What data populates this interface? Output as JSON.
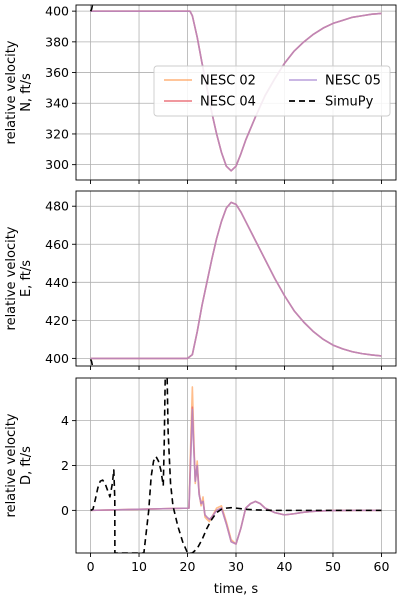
{
  "chart_data": [
    {
      "type": "line",
      "ylabel_line1": "relative velocity",
      "ylabel_line2": "N, ft/s",
      "xlim": [
        -3,
        63
      ],
      "ylim": [
        290,
        404
      ],
      "yticks": [
        300,
        320,
        340,
        360,
        380,
        400
      ],
      "grid": true,
      "legend_position": "center-right",
      "legend_ncol": 2,
      "series": [
        {
          "name": "NESC 02",
          "color": "#ffa15a",
          "opacity": 0.7,
          "width": 1.6,
          "dash": "",
          "x": [
            0,
            20.5,
            21,
            22,
            23,
            24,
            25,
            26,
            27,
            28,
            29,
            30,
            31,
            32,
            34,
            36,
            38,
            40,
            42,
            44,
            46,
            48,
            50,
            52,
            54,
            56,
            58,
            60
          ],
          "y": [
            400,
            400,
            397,
            383,
            366,
            350,
            334,
            320,
            308,
            299,
            296,
            299,
            307,
            316,
            331,
            345,
            356,
            366,
            374,
            380,
            385,
            389,
            392,
            394,
            396,
            397,
            398,
            398.5
          ]
        },
        {
          "name": "NESC 04",
          "color": "#e8636b",
          "opacity": 0.75,
          "width": 1.6,
          "dash": "",
          "x": [
            0,
            20.5,
            21,
            22,
            23,
            24,
            25,
            26,
            27,
            28,
            29,
            30,
            31,
            32,
            34,
            36,
            38,
            40,
            42,
            44,
            46,
            48,
            50,
            52,
            54,
            56,
            58,
            60
          ],
          "y": [
            400,
            400,
            397,
            383,
            366,
            350,
            334,
            320,
            308,
            299,
            296,
            299,
            307,
            316,
            331,
            345,
            356,
            366,
            374,
            380,
            385,
            389,
            392,
            394,
            396,
            397,
            398,
            398.5
          ]
        },
        {
          "name": "NESC 05",
          "color": "#a98ad4",
          "opacity": 0.7,
          "width": 1.6,
          "dash": "",
          "x": [
            0,
            20.5,
            21,
            22,
            23,
            24,
            25,
            26,
            27,
            28,
            29,
            30,
            31,
            32,
            34,
            36,
            38,
            40,
            42,
            44,
            46,
            48,
            50,
            52,
            54,
            56,
            58,
            60
          ],
          "y": [
            400,
            400,
            397,
            383,
            366,
            350,
            334,
            320,
            308,
            299,
            296,
            299,
            307,
            316,
            331,
            345,
            356,
            366,
            374,
            380,
            385,
            389,
            392,
            394,
            396,
            397,
            398,
            398.5
          ]
        },
        {
          "name": "SimuPy",
          "color": "#000000",
          "opacity": 1,
          "width": 1.6,
          "dash": "6,4",
          "x": [
            0,
            0.2,
            0.4
          ],
          "y": [
            400,
            401,
            404
          ]
        }
      ]
    },
    {
      "type": "line",
      "ylabel_line1": "relative velocity",
      "ylabel_line2": "E, ft/s",
      "xlim": [
        -3,
        63
      ],
      "ylim": [
        396,
        488
      ],
      "yticks": [
        400,
        420,
        440,
        460,
        480
      ],
      "grid": true,
      "series": [
        {
          "name": "NESC 02",
          "color": "#ffa15a",
          "opacity": 0.7,
          "width": 1.6,
          "dash": "",
          "x": [
            0,
            20,
            21,
            22,
            23,
            24,
            25,
            26,
            27,
            28,
            29,
            30,
            31,
            32,
            34,
            36,
            38,
            40,
            42,
            44,
            46,
            48,
            50,
            52,
            54,
            56,
            58,
            60
          ],
          "y": [
            400,
            400,
            402,
            414,
            428,
            440,
            452,
            463,
            472,
            479,
            482,
            481,
            477,
            472,
            462,
            452,
            442,
            433,
            425,
            419,
            414,
            410,
            407,
            405,
            403.5,
            402.5,
            401.8,
            401.3
          ]
        },
        {
          "name": "NESC 04",
          "color": "#e8636b",
          "opacity": 0.75,
          "width": 1.6,
          "dash": "",
          "x": [
            0,
            20,
            21,
            22,
            23,
            24,
            25,
            26,
            27,
            28,
            29,
            30,
            31,
            32,
            34,
            36,
            38,
            40,
            42,
            44,
            46,
            48,
            50,
            52,
            54,
            56,
            58,
            60
          ],
          "y": [
            400,
            400,
            402,
            414,
            428,
            440,
            452,
            463,
            472,
            479,
            482,
            481,
            477,
            472,
            462,
            452,
            442,
            433,
            425,
            419,
            414,
            410,
            407,
            405,
            403.5,
            402.5,
            401.8,
            401.3
          ]
        },
        {
          "name": "NESC 05",
          "color": "#a98ad4",
          "opacity": 0.7,
          "width": 1.6,
          "dash": "",
          "x": [
            0,
            20,
            21,
            22,
            23,
            24,
            25,
            26,
            27,
            28,
            29,
            30,
            31,
            32,
            34,
            36,
            38,
            40,
            42,
            44,
            46,
            48,
            50,
            52,
            54,
            56,
            58,
            60
          ],
          "y": [
            400,
            400,
            402,
            414,
            428,
            440,
            452,
            463,
            472,
            479,
            482,
            481,
            477,
            472,
            462,
            452,
            442,
            433,
            425,
            419,
            414,
            410,
            407,
            405,
            403.5,
            402.5,
            401.8,
            401.3
          ]
        },
        {
          "name": "SimuPy",
          "color": "#000000",
          "opacity": 1,
          "width": 1.6,
          "dash": "6,4",
          "x": [
            0,
            0.2,
            0.4
          ],
          "y": [
            399.5,
            398.5,
            396
          ]
        }
      ]
    },
    {
      "type": "line",
      "ylabel_line1": "relative velocity",
      "ylabel_line2": "D, ft/s",
      "xlabel": "time, s",
      "xlim": [
        -3,
        63
      ],
      "ylim": [
        -1.9,
        5.9
      ],
      "yticks": [
        0,
        2,
        4
      ],
      "xticks": [
        0,
        10,
        20,
        30,
        40,
        50,
        60
      ],
      "grid": true,
      "series": [
        {
          "name": "NESC 02",
          "color": "#ffa15a",
          "opacity": 0.7,
          "width": 1.6,
          "dash": "",
          "x": [
            0,
            20.3,
            20.6,
            21,
            21.3,
            21.6,
            22,
            22.4,
            22.8,
            23.2,
            23.6,
            24,
            24.5,
            25,
            26,
            27,
            28,
            29,
            30,
            31,
            32,
            33,
            34,
            35,
            36,
            38,
            40,
            42,
            44,
            46,
            48,
            50,
            55,
            60
          ],
          "y": [
            0,
            0.1,
            2.5,
            5.5,
            3.2,
            1.2,
            2.2,
            0.8,
            0.2,
            0.6,
            -0.3,
            -0.4,
            -0.5,
            -0.3,
            0.1,
            0.2,
            -0.5,
            -1.3,
            -1.5,
            -0.8,
            0.1,
            0.3,
            0.4,
            0.3,
            0.1,
            -0.1,
            -0.2,
            -0.15,
            -0.08,
            -0.04,
            -0.02,
            -0.01,
            0,
            0
          ]
        },
        {
          "name": "NESC 04",
          "color": "#e8636b",
          "opacity": 0.75,
          "width": 1.6,
          "dash": "",
          "x": [
            0,
            20.3,
            20.6,
            21,
            21.3,
            21.6,
            22,
            22.4,
            22.8,
            23.2,
            23.6,
            24,
            24.5,
            25,
            26,
            27,
            28,
            29,
            30,
            31,
            32,
            33,
            34,
            35,
            36,
            38,
            40,
            42,
            44,
            46,
            48,
            50,
            55,
            60
          ],
          "y": [
            0,
            0.1,
            2.0,
            4.6,
            2.8,
            1.3,
            2.0,
            0.7,
            0.3,
            0.4,
            -0.2,
            -0.3,
            -0.4,
            -0.3,
            0.0,
            0.1,
            -0.6,
            -1.4,
            -1.5,
            -0.8,
            0.1,
            0.3,
            0.4,
            0.3,
            0.1,
            -0.1,
            -0.2,
            -0.15,
            -0.08,
            -0.04,
            -0.02,
            -0.01,
            0,
            0
          ]
        },
        {
          "name": "NESC 05",
          "color": "#a98ad4",
          "opacity": 0.7,
          "width": 1.6,
          "dash": "",
          "x": [
            0,
            20.3,
            20.6,
            21,
            21.3,
            21.6,
            22,
            22.4,
            22.8,
            23.2,
            23.6,
            24,
            24.5,
            25,
            26,
            27,
            28,
            29,
            30,
            31,
            32,
            33,
            34,
            35,
            36,
            38,
            40,
            42,
            44,
            46,
            48,
            50,
            55,
            60
          ],
          "y": [
            0,
            0.1,
            1.9,
            4.5,
            2.7,
            1.3,
            2.0,
            0.7,
            0.3,
            0.4,
            -0.2,
            -0.3,
            -0.4,
            -0.3,
            0.0,
            0.1,
            -0.6,
            -1.4,
            -1.5,
            -0.8,
            0.1,
            0.3,
            0.4,
            0.3,
            0.1,
            -0.1,
            -0.2,
            -0.15,
            -0.08,
            -0.04,
            -0.02,
            -0.01,
            0,
            0
          ]
        },
        {
          "name": "SimuPy",
          "color": "#000000",
          "opacity": 1,
          "width": 1.6,
          "dash": "6,4",
          "x": [
            0,
            0.5,
            1,
            1.5,
            2,
            2.5,
            3,
            3.5,
            4,
            4.5,
            4.8,
            5,
            5.02,
            5.3,
            6,
            7,
            8,
            9,
            10,
            11,
            12,
            12.5,
            13,
            13.5,
            14,
            14.5,
            15,
            15.2,
            15.4,
            15.6,
            15.8,
            16,
            16.5,
            17,
            18,
            19,
            20,
            21,
            22,
            23,
            24,
            25,
            26,
            27,
            28,
            29,
            30,
            32,
            34,
            36,
            38,
            40,
            45,
            50,
            55,
            60
          ],
          "y": [
            0,
            0.05,
            0.5,
            1.0,
            1.3,
            1.35,
            1.2,
            0.9,
            0.6,
            1.2,
            1.8,
            0.5,
            -1.9,
            -1.9,
            -1.9,
            -1.9,
            -1.9,
            -1.9,
            -1.9,
            -1.9,
            0.0,
            1.5,
            2.2,
            2.4,
            2.2,
            1.8,
            1.1,
            3.0,
            5.9,
            5.9,
            5.9,
            3.5,
            1.2,
            0.2,
            -0.7,
            -1.4,
            -1.9,
            -1.9,
            -1.7,
            -1.3,
            -0.8,
            -0.4,
            -0.1,
            0.05,
            0.1,
            0.12,
            0.1,
            0.05,
            0.02,
            0.01,
            0.0,
            0.0,
            0.0,
            0.0,
            0.0,
            0.0
          ]
        }
      ]
    }
  ]
}
